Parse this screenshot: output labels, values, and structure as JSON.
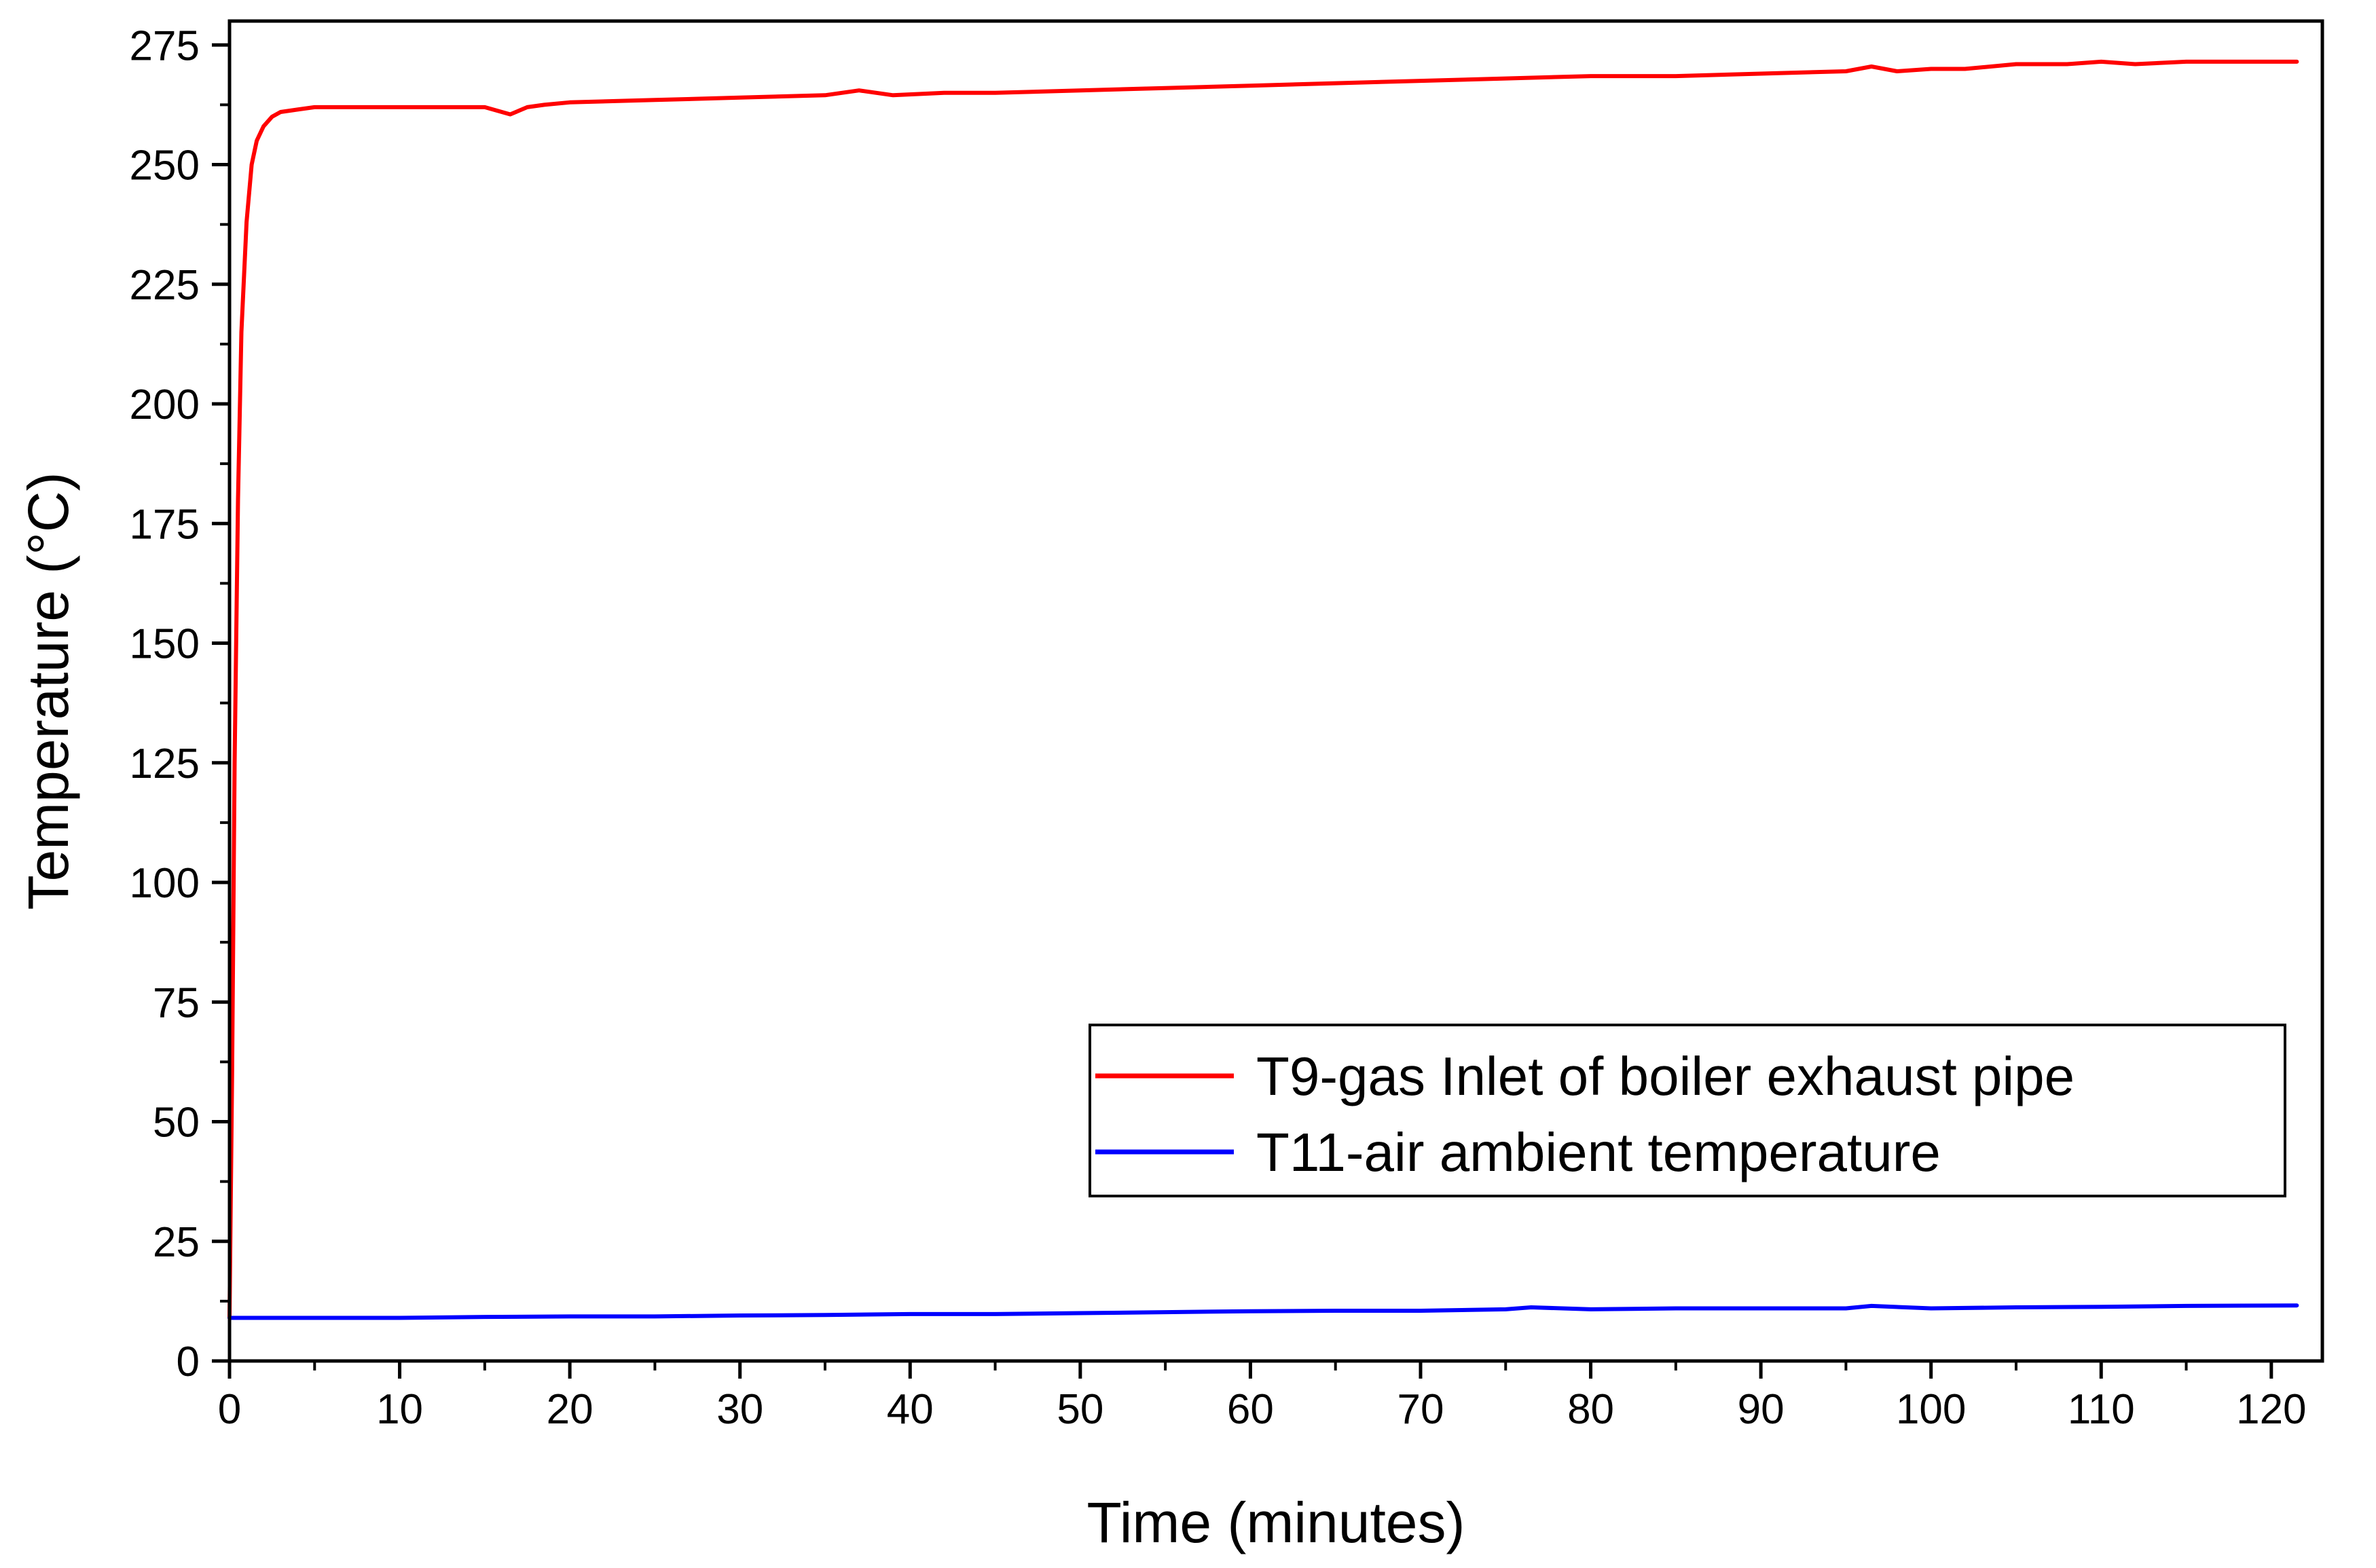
{
  "chart_data": {
    "type": "line",
    "title": "",
    "xlabel": "Time (minutes)",
    "ylabel": "Temperature (°C)",
    "xlim": [
      0,
      123
    ],
    "ylim": [
      0,
      280
    ],
    "xticks": [
      0,
      10,
      20,
      30,
      40,
      50,
      60,
      70,
      80,
      90,
      100,
      110,
      120
    ],
    "yticks": [
      0,
      25,
      50,
      75,
      100,
      125,
      150,
      175,
      200,
      225,
      250,
      275
    ],
    "grid": false,
    "legend_position": "bottom-right",
    "series": [
      {
        "name": "T9-gas Inlet of boiler exhaust pipe",
        "color": "#ff0000",
        "x": [
          0,
          0.15,
          0.3,
          0.5,
          0.7,
          1.0,
          1.3,
          1.6,
          2.0,
          2.5,
          3.0,
          4.0,
          5.0,
          6.0,
          8.0,
          10.0,
          12.0,
          14.0,
          15.0,
          16.5,
          17.5,
          18.5,
          20.0,
          25.0,
          30.0,
          35.0,
          37.0,
          39.0,
          42.0,
          45.0,
          50.0,
          55.0,
          60.0,
          65.0,
          70.0,
          75.0,
          80.0,
          85.0,
          90.0,
          95.0,
          96.5,
          98.0,
          100.0,
          102.0,
          105.0,
          108.0,
          110.0,
          112.0,
          115.0,
          118.0,
          121.5
        ],
        "y": [
          9,
          60,
          125,
          180,
          215,
          238,
          250,
          255,
          258,
          260,
          261,
          261.5,
          262,
          262,
          262,
          262,
          262,
          262,
          262,
          260.5,
          262,
          262.5,
          263,
          263.5,
          264,
          264.5,
          265.5,
          264.5,
          265,
          265,
          265.5,
          266,
          266.5,
          267,
          267.5,
          268,
          268.5,
          268.5,
          269,
          269.5,
          270.5,
          269.5,
          270,
          270,
          271,
          271,
          271.5,
          271,
          271.5,
          271.5,
          271.5
        ]
      },
      {
        "name": "T11-air ambient temperature",
        "color": "#0000ff",
        "x": [
          0,
          5,
          10,
          15,
          20,
          25,
          30,
          35,
          40,
          45,
          50,
          55,
          60,
          65,
          70,
          75,
          76.5,
          80,
          85,
          90,
          95,
          96.5,
          100,
          105,
          110,
          115,
          121.5
        ],
        "y": [
          9,
          9,
          9,
          9.2,
          9.3,
          9.3,
          9.5,
          9.6,
          9.8,
          9.8,
          10,
          10.2,
          10.4,
          10.5,
          10.5,
          10.8,
          11.2,
          10.8,
          11,
          11,
          11,
          11.5,
          11,
          11.2,
          11.3,
          11.5,
          11.6
        ]
      }
    ]
  }
}
